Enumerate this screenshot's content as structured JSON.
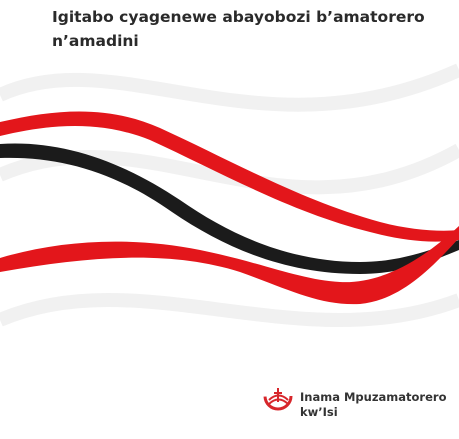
{
  "cover": {
    "title_lines": [
      "Igitabo cyagenewe abayobozi b’amatorero",
      "n’amadini"
    ],
    "publisher": {
      "name_lines": [
        "Inama Mpuzamatorero",
        "kw’Isi"
      ]
    }
  }
}
